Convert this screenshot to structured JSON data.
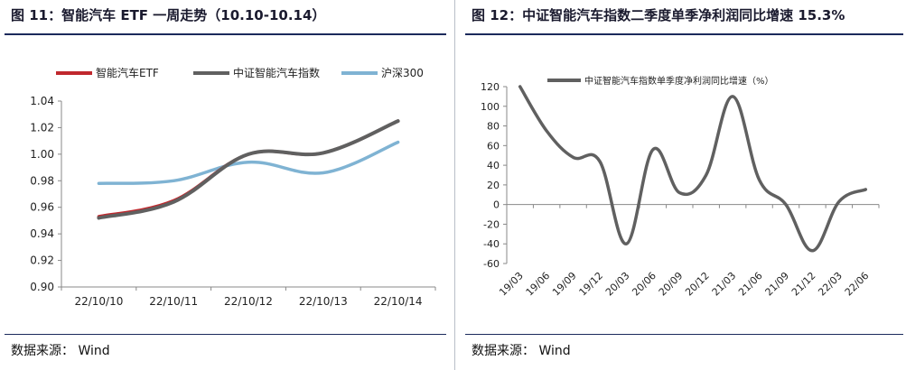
{
  "left": {
    "figure_label": "图 11：",
    "title": "智能汽车 ETF 一周走势（10.10-10.14）",
    "source": "数据来源：  Wind",
    "chart_data": {
      "type": "line",
      "categories": [
        "22/10/10",
        "22/10/11",
        "22/10/12",
        "22/10/13",
        "22/10/14"
      ],
      "series": [
        {
          "name": "智能汽车ETF",
          "color": "#c0282d",
          "values": [
            0.953,
            0.965,
            1.0,
            1.001,
            1.025
          ]
        },
        {
          "name": "中证智能汽车指数",
          "color": "#606060",
          "values": [
            0.952,
            0.964,
            1.0,
            1.001,
            1.025
          ]
        },
        {
          "name": "沪深300",
          "color": "#7fb3d3",
          "values": [
            0.978,
            0.98,
            0.994,
            0.986,
            1.009
          ]
        }
      ],
      "yticks": [
        "0.90",
        "0.92",
        "0.94",
        "0.96",
        "0.98",
        "1.00",
        "1.02",
        "1.04"
      ],
      "ylim": [
        0.9,
        1.04
      ],
      "grid": false,
      "legend": "top"
    }
  },
  "right": {
    "figure_label": "图 12：",
    "title": "中证智能汽车指数二季度单季净利润同比增速 15.3%",
    "source": "数据来源：  Wind",
    "chart_data": {
      "type": "line",
      "legend_label": "中证智能汽车指数单季度净利润同比增速（%）",
      "color": "#606060",
      "categories": [
        "19/03",
        "19/06",
        "19/09",
        "19/12",
        "20/03",
        "20/06",
        "20/09",
        "20/12",
        "21/03",
        "21/06",
        "21/09",
        "21/12",
        "22/03",
        "22/06"
      ],
      "values": [
        120,
        75,
        48,
        44,
        -40,
        56,
        12,
        30,
        110,
        25,
        0,
        -47,
        3,
        15.3
      ],
      "yticks": [
        "-60",
        "-40",
        "-20",
        "0",
        "20",
        "40",
        "60",
        "80",
        "100",
        "120"
      ],
      "ylim": [
        -60,
        120
      ],
      "grid": false,
      "legend": "top"
    }
  }
}
